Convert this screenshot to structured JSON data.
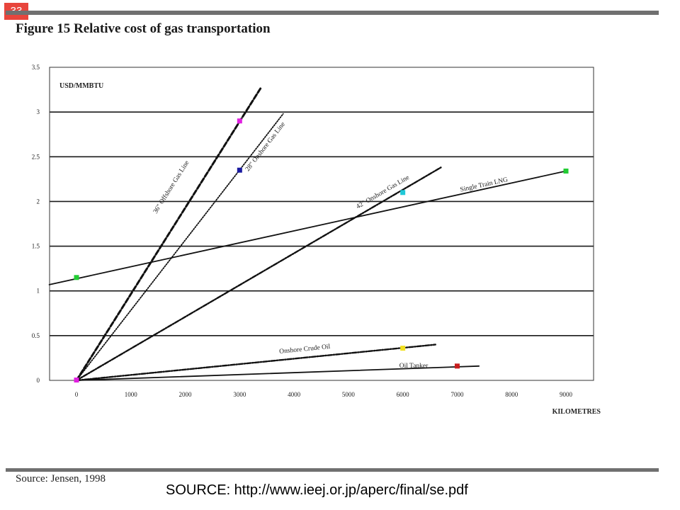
{
  "page": {
    "number": "33",
    "source_url": "SOURCE: http://www.ieej.or.jp/aperc/final/se.pdf",
    "source_note": "Source: Jensen, 1998"
  },
  "colors": {
    "badge": "#e8453c",
    "rules": "#707070"
  },
  "chart_data": {
    "type": "line",
    "title": "Figure 15  Relative cost of gas transportation",
    "xlabel": "KILOMETRES",
    "ylabel": "USD/MMBTU",
    "xlim": [
      -500,
      9500
    ],
    "ylim": [
      0,
      3.5
    ],
    "xticks": [
      0,
      1000,
      2000,
      3000,
      4000,
      5000,
      6000,
      7000,
      8000,
      9000
    ],
    "yticks": [
      0,
      0.5,
      1,
      1.5,
      2,
      2.5,
      3,
      3.5
    ],
    "ytick_labels": [
      "0",
      "0.5",
      "1",
      "1.5",
      "2",
      "2.5",
      "3",
      "3.5"
    ],
    "grid": "horizontal",
    "series": [
      {
        "name": "36\" Offshore Gas Line",
        "style": "dashed",
        "points": [
          [
            0,
            0
          ],
          [
            3400,
            3.28
          ]
        ],
        "marker": {
          "x": 3000,
          "y": 2.9,
          "color": "#e020e0"
        }
      },
      {
        "name": "28\" Onshore Gas Line",
        "style": "dotted",
        "points": [
          [
            0,
            0
          ],
          [
            3800,
            2.98
          ]
        ],
        "marker": {
          "x": 3000,
          "y": 2.35,
          "color": "#1a1aa0"
        }
      },
      {
        "name": "42\" Onshore Gas Line",
        "style": "dashdot",
        "points": [
          [
            0,
            0
          ],
          [
            6700,
            2.38
          ]
        ],
        "marker": {
          "x": 6000,
          "y": 2.1,
          "color": "#20c8d8"
        }
      },
      {
        "name": "Single Train LNG",
        "style": "solid",
        "points": [
          [
            -500,
            1.07
          ],
          [
            9000,
            2.34
          ]
        ],
        "marker": {
          "x": 9000,
          "y": 2.34,
          "color": "#22cc33"
        },
        "start_marker": {
          "x": 0,
          "y": 1.15,
          "color": "#22cc33"
        }
      },
      {
        "name": "Onshore Crude Oil",
        "style": "dashdot",
        "points": [
          [
            0,
            0
          ],
          [
            6600,
            0.4
          ]
        ],
        "marker": {
          "x": 6000,
          "y": 0.36,
          "color": "#f2e020"
        }
      },
      {
        "name": "Oil Tanker",
        "style": "solid",
        "points": [
          [
            0,
            0
          ],
          [
            7400,
            0.16
          ]
        ],
        "marker": {
          "x": 7000,
          "y": 0.16,
          "color": "#c81e1e"
        }
      }
    ],
    "origin_marker_color": "#e020e0"
  }
}
